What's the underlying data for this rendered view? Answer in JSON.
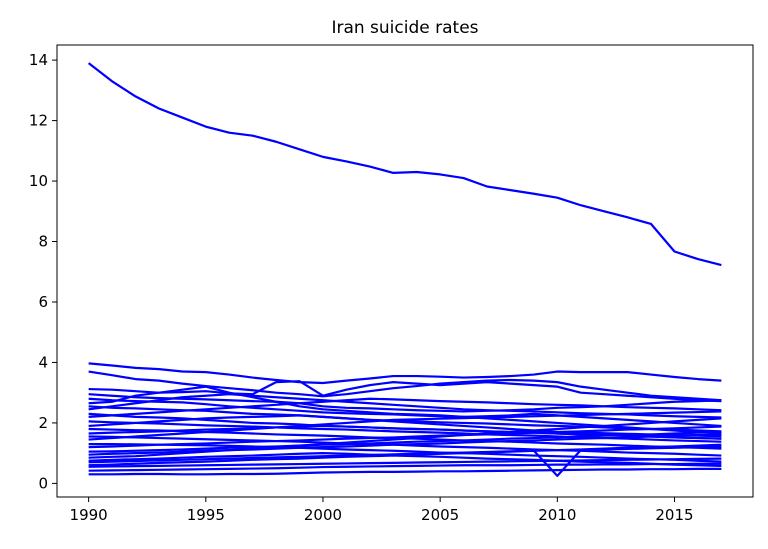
{
  "chart_data": {
    "type": "line",
    "title": "Iran suicide rates",
    "xlabel": "",
    "ylabel": "",
    "xlim": [
      1988.65,
      2018.35
    ],
    "ylim": [
      -0.45,
      14.5
    ],
    "xticks": [
      1990,
      1995,
      2000,
      2005,
      2010,
      2015
    ],
    "yticks": [
      0,
      2,
      4,
      6,
      8,
      10,
      12,
      14
    ],
    "grid": false,
    "line_color": "#0000ff",
    "x": [
      1990,
      1991,
      1992,
      1993,
      1994,
      1995,
      1996,
      1997,
      1998,
      1999,
      2000,
      2001,
      2002,
      2003,
      2004,
      2005,
      2006,
      2007,
      2008,
      2009,
      2010,
      2011,
      2012,
      2013,
      2014,
      2015,
      2016,
      2017
    ],
    "series": [
      {
        "values": [
          13.9,
          13.3,
          12.8,
          12.4,
          12.1,
          11.8,
          11.6,
          11.5,
          11.3,
          11.05,
          10.8,
          10.65,
          10.48,
          10.27,
          10.3,
          10.22,
          10.1,
          9.82,
          9.7,
          9.58,
          9.45,
          9.2,
          9.0,
          8.8,
          8.58,
          7.67,
          7.42,
          7.22
        ]
      },
      {
        "values": [
          3.97,
          3.9,
          3.82,
          3.78,
          3.7,
          3.68,
          3.6,
          3.5,
          3.42,
          3.35,
          3.32,
          3.4,
          3.47,
          3.55,
          3.55,
          3.53,
          3.5,
          3.52,
          3.55,
          3.6,
          3.7,
          3.68,
          3.68,
          3.68,
          3.6,
          3.52,
          3.45,
          3.4
        ]
      },
      {
        "values": [
          3.7,
          3.58,
          3.45,
          3.4,
          3.3,
          3.22,
          3.15,
          3.08,
          3.0,
          2.95,
          2.88,
          2.95,
          3.05,
          3.15,
          3.22,
          3.3,
          3.35,
          3.4,
          3.42,
          3.4,
          3.35,
          3.2,
          3.1,
          3.0,
          2.9,
          2.85,
          2.8,
          2.75
        ]
      },
      {
        "values": [
          3.12,
          3.1,
          3.05,
          3.0,
          3.02,
          3.05,
          2.98,
          2.95,
          3.35,
          3.38,
          2.9,
          3.1,
          3.25,
          3.35,
          3.3,
          3.25,
          3.3,
          3.35,
          3.3,
          3.25,
          3.2,
          3.0,
          2.95,
          2.9,
          2.85,
          2.8,
          2.75,
          2.72
        ]
      },
      {
        "values": [
          2.95,
          2.9,
          2.85,
          2.82,
          2.8,
          2.78,
          2.75,
          2.72,
          2.7,
          2.65,
          2.55,
          2.5,
          2.48,
          2.45,
          2.42,
          2.4,
          2.38,
          2.4,
          2.42,
          2.45,
          2.5,
          2.52,
          2.55,
          2.6,
          2.65,
          2.7,
          2.72,
          2.75
        ]
      },
      {
        "values": [
          2.8,
          2.75,
          2.72,
          2.7,
          2.68,
          2.62,
          2.55,
          2.5,
          2.45,
          2.4,
          2.35,
          2.32,
          2.3,
          2.28,
          2.25,
          2.22,
          2.2,
          2.22,
          2.25,
          2.3,
          2.25,
          2.2,
          2.15,
          2.1,
          2.05,
          2.0,
          1.95,
          1.9
        ]
      },
      {
        "values": [
          2.55,
          2.5,
          2.48,
          2.45,
          2.42,
          2.4,
          2.35,
          2.3,
          2.28,
          2.25,
          2.2,
          2.15,
          2.1,
          2.08,
          2.05,
          2.02,
          2.0,
          1.98,
          1.95,
          1.92,
          1.9,
          1.88,
          1.85,
          1.82,
          1.8,
          1.78,
          1.75,
          1.72
        ]
      },
      {
        "values": [
          2.3,
          2.25,
          2.2,
          2.18,
          2.15,
          2.1,
          2.05,
          2.0,
          1.98,
          1.95,
          1.9,
          1.88,
          1.85,
          1.82,
          1.8,
          1.78,
          1.75,
          1.72,
          1.7,
          1.68,
          1.65,
          1.62,
          1.6,
          1.58,
          1.55,
          1.52,
          1.5,
          1.48
        ]
      },
      {
        "values": [
          2.05,
          2.02,
          2.0,
          1.98,
          1.95,
          1.92,
          1.9,
          1.88,
          1.85,
          1.82,
          1.8,
          1.78,
          1.75,
          1.72,
          1.7,
          1.68,
          1.65,
          1.62,
          1.6,
          1.58,
          1.55,
          1.52,
          1.5,
          1.48,
          1.45,
          1.42,
          1.4,
          1.38
        ]
      },
      {
        "values": [
          1.8,
          1.78,
          1.76,
          1.75,
          1.73,
          1.7,
          1.68,
          1.65,
          1.62,
          1.6,
          1.58,
          1.55,
          1.52,
          1.5,
          1.48,
          1.45,
          1.42,
          1.4,
          1.38,
          1.35,
          1.32,
          1.3,
          1.28,
          1.25,
          1.22,
          1.2,
          1.18,
          1.15
        ]
      },
      {
        "values": [
          1.55,
          1.54,
          1.52,
          1.5,
          1.48,
          1.46,
          1.44,
          1.42,
          1.4,
          1.38,
          1.35,
          1.32,
          1.3,
          1.28,
          1.25,
          1.22,
          1.2,
          1.18,
          1.15,
          1.12,
          1.1,
          1.08,
          1.05,
          1.02,
          1.0,
          0.98,
          0.95,
          0.92
        ]
      },
      {
        "values": [
          1.3,
          1.3,
          1.29,
          1.28,
          1.27,
          1.26,
          1.24,
          1.22,
          1.2,
          1.18,
          1.15,
          1.12,
          1.1,
          1.08,
          1.05,
          1.02,
          1.0,
          0.98,
          0.95,
          0.92,
          0.9,
          0.88,
          0.85,
          0.82,
          0.8,
          0.78,
          0.75,
          0.72
        ]
      },
      {
        "values": [
          1.05,
          1.06,
          1.08,
          1.1,
          1.12,
          1.15,
          1.18,
          1.2,
          1.22,
          1.25,
          1.28,
          1.3,
          1.32,
          1.35,
          1.38,
          1.4,
          1.42,
          1.45,
          1.48,
          1.5,
          1.52,
          1.55,
          1.58,
          1.6,
          1.62,
          1.65,
          1.68,
          1.7
        ]
      },
      {
        "values": [
          0.85,
          0.88,
          0.9,
          0.95,
          1.0,
          1.05,
          1.1,
          1.15,
          1.2,
          1.25,
          1.3,
          1.35,
          1.4,
          1.45,
          1.5,
          1.55,
          1.6,
          1.65,
          1.7,
          1.75,
          1.8,
          1.85,
          1.9,
          1.95,
          2.0,
          2.05,
          2.1,
          2.15
        ]
      },
      {
        "values": [
          0.7,
          0.72,
          0.74,
          0.76,
          0.78,
          0.8,
          0.82,
          0.84,
          0.86,
          0.88,
          0.9,
          0.92,
          0.94,
          0.96,
          0.98,
          1.0,
          1.02,
          1.04,
          1.06,
          1.08,
          0.25,
          1.1,
          1.12,
          1.14,
          1.16,
          1.18,
          1.2,
          1.22
        ]
      },
      {
        "values": [
          0.55,
          0.56,
          0.57,
          0.58,
          0.59,
          0.6,
          0.61,
          0.62,
          0.63,
          0.64,
          0.65,
          0.66,
          0.67,
          0.68,
          0.69,
          0.7,
          0.71,
          0.72,
          0.73,
          0.74,
          0.75,
          0.76,
          0.77,
          0.78,
          0.79,
          0.8,
          0.81,
          0.82
        ]
      },
      {
        "values": [
          0.42,
          0.43,
          0.44,
          0.45,
          0.46,
          0.47,
          0.48,
          0.49,
          0.5,
          0.52,
          0.54,
          0.55,
          0.56,
          0.57,
          0.58,
          0.59,
          0.6,
          0.6,
          0.6,
          0.61,
          0.62,
          0.62,
          0.63,
          0.63,
          0.64,
          0.64,
          0.65,
          0.65
        ]
      },
      {
        "values": [
          0.3,
          0.3,
          0.31,
          0.31,
          0.3,
          0.3,
          0.31,
          0.31,
          0.32,
          0.34,
          0.36,
          0.37,
          0.38,
          0.38,
          0.39,
          0.4,
          0.4,
          0.41,
          0.42,
          0.43,
          0.44,
          0.45,
          0.46,
          0.46,
          0.47,
          0.47,
          0.48,
          0.48
        ]
      },
      {
        "values": [
          2.65,
          2.7,
          2.9,
          3.0,
          3.1,
          3.2,
          3.0,
          2.85,
          2.7,
          2.55,
          2.45,
          2.4,
          2.35,
          2.3,
          2.28,
          2.25,
          2.2,
          2.15,
          2.1,
          2.05,
          2.0,
          1.95,
          1.9,
          1.85,
          1.8,
          1.75,
          1.7,
          1.65
        ]
      },
      {
        "values": [
          2.45,
          2.55,
          2.65,
          2.75,
          2.85,
          2.9,
          2.95,
          2.9,
          2.85,
          2.8,
          2.75,
          2.7,
          2.65,
          2.6,
          2.55,
          2.5,
          2.45,
          2.42,
          2.4,
          2.38,
          2.35,
          2.32,
          2.3,
          2.28,
          2.25,
          2.22,
          2.2,
          2.18
        ]
      },
      {
        "values": [
          1.9,
          1.95,
          2.0,
          2.05,
          2.1,
          2.15,
          2.18,
          2.2,
          2.22,
          2.25,
          2.2,
          2.15,
          2.1,
          2.05,
          2.0,
          1.95,
          1.9,
          1.85,
          1.8,
          1.75,
          1.7,
          1.68,
          1.66,
          1.64,
          1.62,
          1.6,
          1.58,
          1.56
        ]
      },
      {
        "values": [
          1.45,
          1.5,
          1.55,
          1.6,
          1.65,
          1.7,
          1.75,
          1.8,
          1.85,
          1.9,
          1.95,
          2.0,
          2.05,
          2.1,
          2.12,
          2.14,
          2.16,
          2.18,
          2.2,
          2.22,
          2.24,
          2.26,
          2.28,
          2.3,
          2.32,
          2.34,
          2.36,
          2.38
        ]
      },
      {
        "values": [
          1.2,
          1.22,
          1.25,
          1.28,
          1.3,
          1.32,
          1.35,
          1.38,
          1.4,
          1.42,
          1.45,
          1.48,
          1.5,
          1.52,
          1.55,
          1.58,
          1.6,
          1.62,
          1.65,
          1.68,
          1.7,
          1.72,
          1.75,
          1.78,
          1.8,
          1.82,
          1.85,
          1.88
        ]
      },
      {
        "values": [
          0.95,
          0.98,
          1.0,
          1.02,
          1.05,
          1.08,
          1.1,
          1.12,
          1.15,
          1.18,
          1.2,
          1.22,
          1.25,
          1.28,
          1.3,
          1.32,
          1.35,
          1.38,
          1.4,
          1.42,
          1.45,
          1.48,
          1.5,
          1.52,
          1.55,
          1.58,
          1.6,
          1.62
        ]
      },
      {
        "values": [
          0.6,
          0.62,
          0.65,
          0.68,
          0.7,
          0.72,
          0.75,
          0.78,
          0.8,
          0.82,
          0.85,
          0.88,
          0.9,
          0.92,
          0.95,
          0.98,
          1.0,
          1.02,
          1.05,
          1.08,
          1.1,
          1.12,
          1.15,
          1.18,
          1.2,
          1.22,
          1.25,
          1.28
        ]
      },
      {
        "values": [
          0.75,
          0.78,
          0.8,
          0.82,
          0.85,
          0.88,
          0.9,
          0.92,
          0.95,
          0.98,
          1.0,
          0.98,
          0.95,
          0.92,
          0.9,
          0.88,
          0.85,
          0.82,
          0.8,
          0.78,
          0.75,
          0.72,
          0.7,
          0.68,
          0.65,
          0.62,
          0.6,
          0.58
        ]
      },
      {
        "values": [
          2.2,
          2.25,
          2.3,
          2.35,
          2.4,
          2.45,
          2.5,
          2.55,
          2.6,
          2.65,
          2.7,
          2.75,
          2.8,
          2.78,
          2.75,
          2.72,
          2.7,
          2.68,
          2.65,
          2.62,
          2.6,
          2.58,
          2.55,
          2.52,
          2.5,
          2.48,
          2.45,
          2.42
        ]
      },
      {
        "values": [
          1.65,
          1.68,
          1.7,
          1.72,
          1.75,
          1.78,
          1.8,
          1.82,
          1.85,
          1.88,
          1.9,
          1.88,
          1.85,
          1.82,
          1.8,
          1.78,
          1.75,
          1.72,
          1.7,
          1.68,
          1.65,
          1.62,
          1.6,
          1.58,
          1.55,
          1.52,
          1.5,
          1.48
        ]
      }
    ]
  }
}
